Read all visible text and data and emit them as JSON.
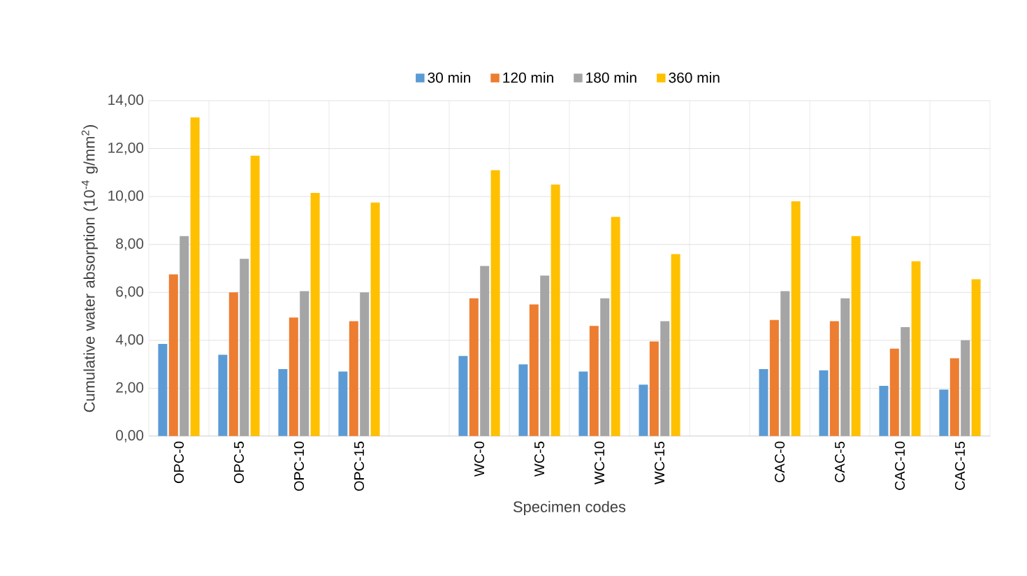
{
  "chart_data": {
    "type": "bar",
    "xlabel": "Specimen codes",
    "ylabel": "Cumulative water absorption (10$^{-4}$ g/mm$^{2}$)",
    "categories": [
      "OPC-0",
      "OPC-5",
      "OPC-10",
      "OPC-15",
      null,
      "WC-0",
      "WC-5",
      "WC-10",
      "WC-15",
      null,
      "CAC-0",
      "CAC-5",
      "CAC-10",
      "CAC-15"
    ],
    "series": [
      {
        "name": "30 min",
        "color": "#5b9bd5",
        "values": [
          3.85,
          3.4,
          2.8,
          2.7,
          null,
          3.35,
          3.0,
          2.7,
          2.15,
          null,
          2.8,
          2.75,
          2.1,
          1.95
        ]
      },
      {
        "name": "120 min",
        "color": "#ed7d31",
        "values": [
          6.75,
          6.0,
          4.95,
          4.8,
          null,
          5.75,
          5.5,
          4.6,
          3.95,
          null,
          4.85,
          4.8,
          3.65,
          3.25
        ]
      },
      {
        "name": "180 min",
        "color": "#a5a5a5",
        "values": [
          8.35,
          7.4,
          6.05,
          6.0,
          null,
          7.1,
          6.7,
          5.75,
          4.8,
          null,
          6.05,
          5.75,
          4.55,
          4.0
        ]
      },
      {
        "name": "360 min",
        "color": "#ffc000",
        "values": [
          13.3,
          11.7,
          10.15,
          9.75,
          null,
          11.1,
          10.5,
          9.15,
          7.6,
          null,
          9.8,
          8.35,
          7.3,
          6.55
        ]
      }
    ],
    "ylim": [
      0,
      14
    ],
    "yticks": [
      {
        "value": 0,
        "label": "0,00"
      },
      {
        "value": 2,
        "label": "2,00"
      },
      {
        "value": 4,
        "label": "4,00"
      },
      {
        "value": 6,
        "label": "6,00"
      },
      {
        "value": 8,
        "label": "8,00"
      },
      {
        "value": 10,
        "label": "10,00"
      },
      {
        "value": 12,
        "label": "12,00"
      },
      {
        "value": 14,
        "label": "14,00"
      }
    ],
    "grid": true,
    "legend": "top"
  }
}
